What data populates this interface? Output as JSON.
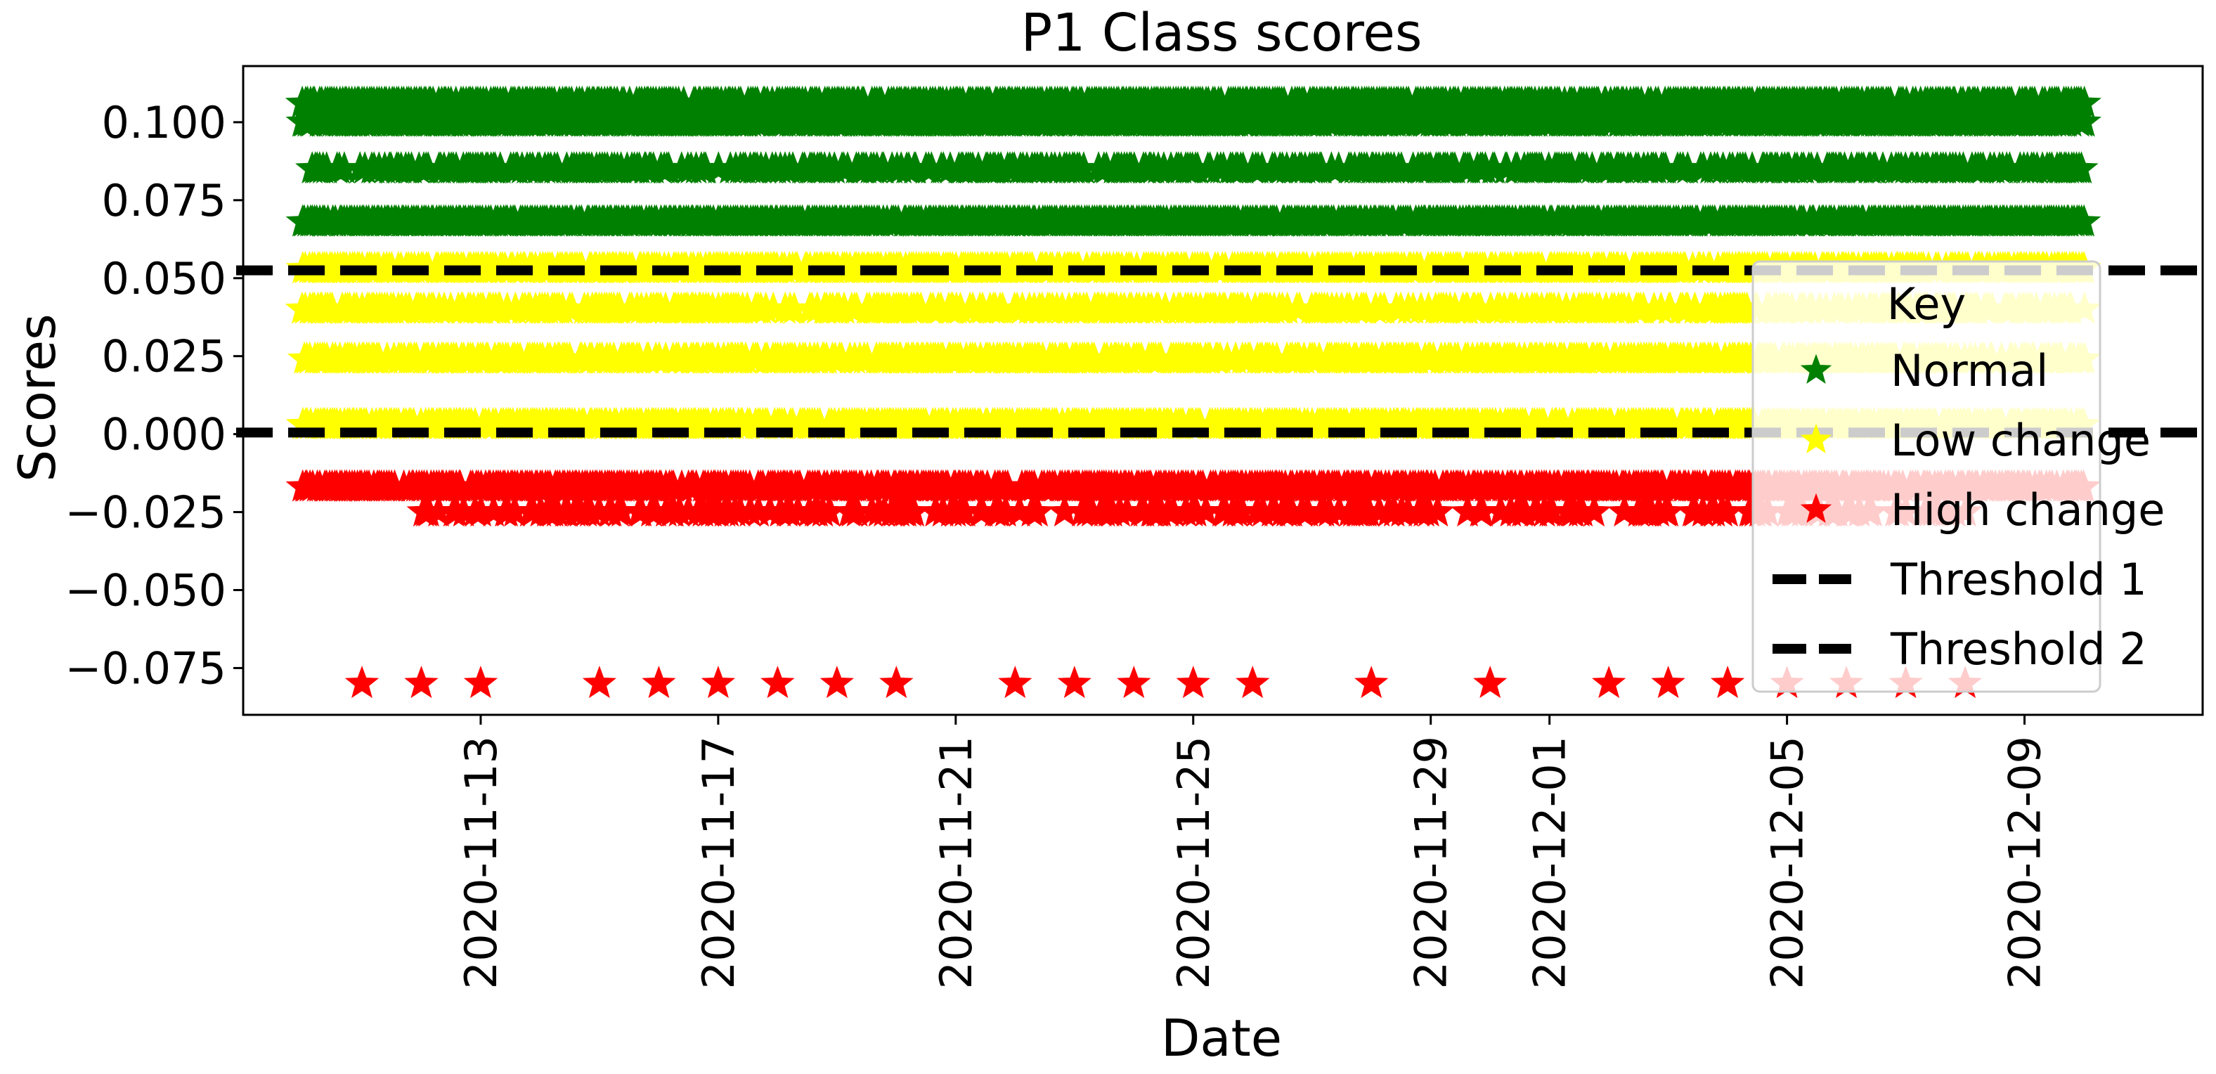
{
  "chart_data": {
    "type": "scatter",
    "title": "P1 Class scores",
    "xlabel": "Date",
    "ylabel": "Scores",
    "x_axis": {
      "kind": "date",
      "range": [
        "2020-11-09",
        "2020-12-12"
      ],
      "ticks": [
        "2020-11-13",
        "2020-11-17",
        "2020-11-21",
        "2020-11-25",
        "2020-11-29",
        "2020-12-01",
        "2020-12-05",
        "2020-12-09"
      ]
    },
    "y_axis": {
      "range": [
        -0.09,
        0.118
      ],
      "ticks": [
        {
          "value": 0.1,
          "label": "0.100"
        },
        {
          "value": 0.075,
          "label": "0.075"
        },
        {
          "value": 0.05,
          "label": "0.050"
        },
        {
          "value": 0.025,
          "label": "0.025"
        },
        {
          "value": 0.0,
          "label": "0.000"
        },
        {
          "value": -0.025,
          "label": "−0.025"
        },
        {
          "value": -0.05,
          "label": "−0.050"
        },
        {
          "value": -0.075,
          "label": "−0.075"
        }
      ]
    },
    "grid": false,
    "marker": "star",
    "series": [
      {
        "name": "Normal",
        "color": "#008000",
        "points": [
          {
            "date_start": "2020-11-10",
            "date_end": "2020-12-10",
            "y": 0.106,
            "density": 0.9
          },
          {
            "date_start": "2020-11-10",
            "date_end": "2020-12-10",
            "y": 0.1,
            "density": 0.85
          },
          {
            "date_start": "2020-11-10",
            "date_end": "2020-12-10",
            "y": 0.085,
            "density": 0.6
          },
          {
            "date_start": "2020-11-10",
            "date_end": "2020-12-10",
            "y": 0.068,
            "density": 0.95
          }
        ]
      },
      {
        "name": "Low change",
        "color": "#ffff00",
        "points": [
          {
            "date_start": "2020-11-10",
            "date_end": "2020-12-10",
            "y": 0.053,
            "density": 0.85
          },
          {
            "date_start": "2020-11-10",
            "date_end": "2020-12-10",
            "y": 0.04,
            "density": 0.6
          },
          {
            "date_start": "2020-11-10",
            "date_end": "2020-12-10",
            "y": 0.024,
            "density": 0.75
          },
          {
            "date_start": "2020-11-10",
            "date_end": "2020-12-10",
            "y": 0.003,
            "density": 0.85
          }
        ]
      },
      {
        "name": "High change",
        "color": "#ff0000",
        "points": [
          {
            "date_start": "2020-11-10",
            "date_end": "2020-12-10",
            "y": -0.017,
            "density": 0.85
          },
          {
            "date_start": "2020-11-12",
            "date_end": "2020-12-08",
            "y": -0.025,
            "density": 0.35
          },
          {
            "date": "2020-11-11",
            "y": -0.08
          },
          {
            "date": "2020-11-12",
            "y": -0.08
          },
          {
            "date": "2020-11-13",
            "y": -0.08
          },
          {
            "date": "2020-11-15",
            "y": -0.08
          },
          {
            "date": "2020-11-16",
            "y": -0.08
          },
          {
            "date": "2020-11-17",
            "y": -0.08
          },
          {
            "date": "2020-11-18",
            "y": -0.08
          },
          {
            "date": "2020-11-19",
            "y": -0.08
          },
          {
            "date": "2020-11-20",
            "y": -0.08
          },
          {
            "date": "2020-11-22",
            "y": -0.08
          },
          {
            "date": "2020-11-23",
            "y": -0.08
          },
          {
            "date": "2020-11-24",
            "y": -0.08
          },
          {
            "date": "2020-11-25",
            "y": -0.08
          },
          {
            "date": "2020-11-26",
            "y": -0.08
          },
          {
            "date": "2020-11-28",
            "y": -0.08
          },
          {
            "date": "2020-11-30",
            "y": -0.08
          },
          {
            "date": "2020-12-02",
            "y": -0.08
          },
          {
            "date": "2020-12-03",
            "y": -0.08
          },
          {
            "date": "2020-12-04",
            "y": -0.08
          },
          {
            "date": "2020-12-05",
            "y": -0.08
          },
          {
            "date": "2020-12-06",
            "y": -0.08
          },
          {
            "date": "2020-12-07",
            "y": -0.08
          },
          {
            "date": "2020-12-08",
            "y": -0.08
          }
        ]
      }
    ],
    "thresholds": [
      {
        "name": "Threshold 1",
        "y": 0.0525,
        "color": "#000000",
        "style": "dashed"
      },
      {
        "name": "Threshold 2",
        "y": 0.0005,
        "color": "#000000",
        "style": "dashed"
      }
    ],
    "legend": {
      "title": "Key",
      "placement": "right",
      "entries": [
        "Normal",
        "Low change",
        "High change",
        "Threshold 1",
        "Threshold 2"
      ]
    }
  }
}
